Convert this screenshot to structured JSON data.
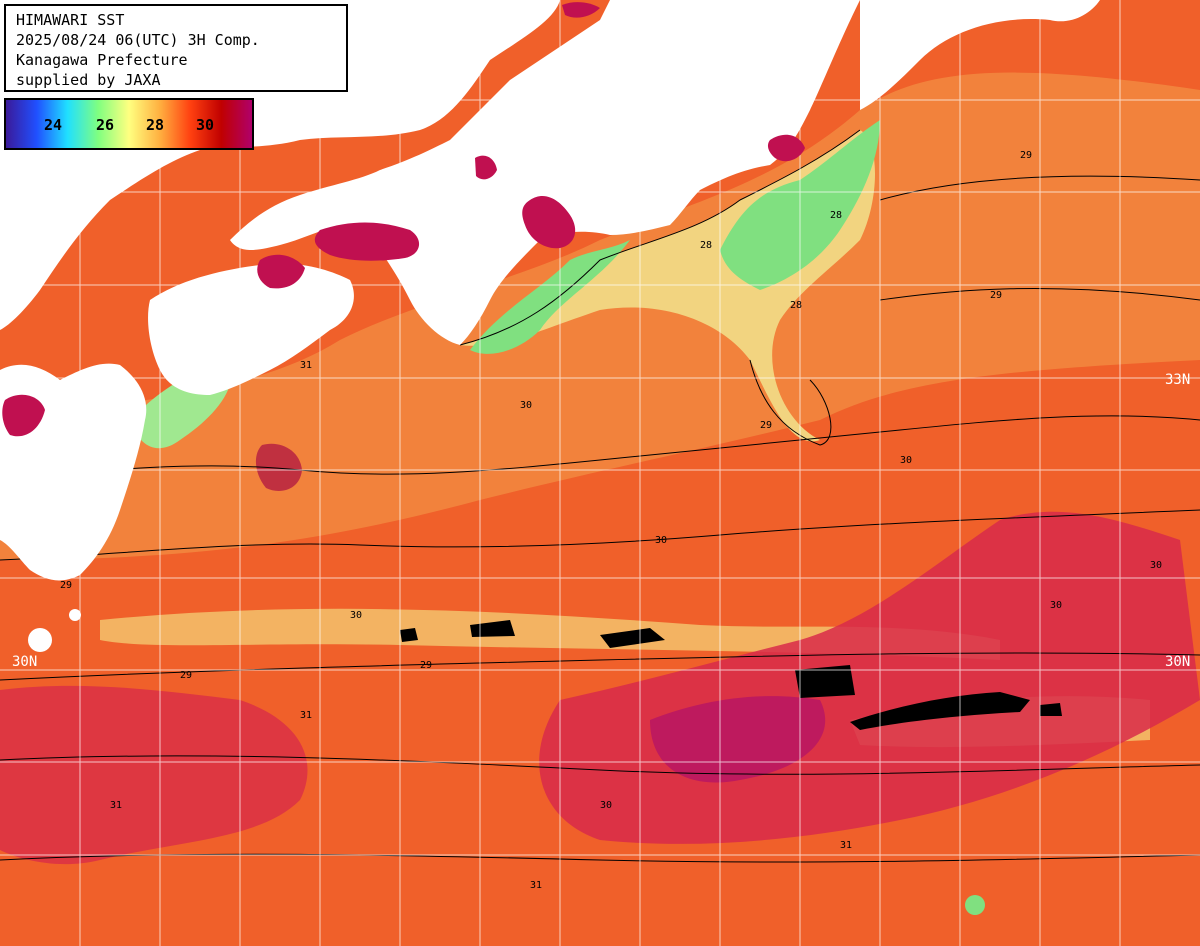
{
  "title": {
    "line1": "HIMAWARI SST",
    "line2": "2025/08/24 06(UTC) 3H Comp.",
    "line3": "Kanagawa Prefecture",
    "line4": "supplied by JAXA"
  },
  "legend": {
    "ticks": [
      "24",
      "26",
      "28",
      "30"
    ],
    "colors": [
      "#3a1a9a",
      "#2050ff",
      "#20e0ff",
      "#80ff80",
      "#ffff80",
      "#ffb040",
      "#ff4010",
      "#c00000",
      "#b0006a"
    ]
  },
  "lat_labels": {
    "north_33": "33N",
    "north_30_left": "30N",
    "north_30_right": "30N"
  },
  "contour_labels": [
    "28",
    "29",
    "30",
    "31"
  ],
  "colors": {
    "warm": "#f0602a",
    "hot": "#d82a4a",
    "cool": "#f4d880",
    "cold": "#80e080",
    "land": "#ffffff",
    "missing": "#000000"
  }
}
